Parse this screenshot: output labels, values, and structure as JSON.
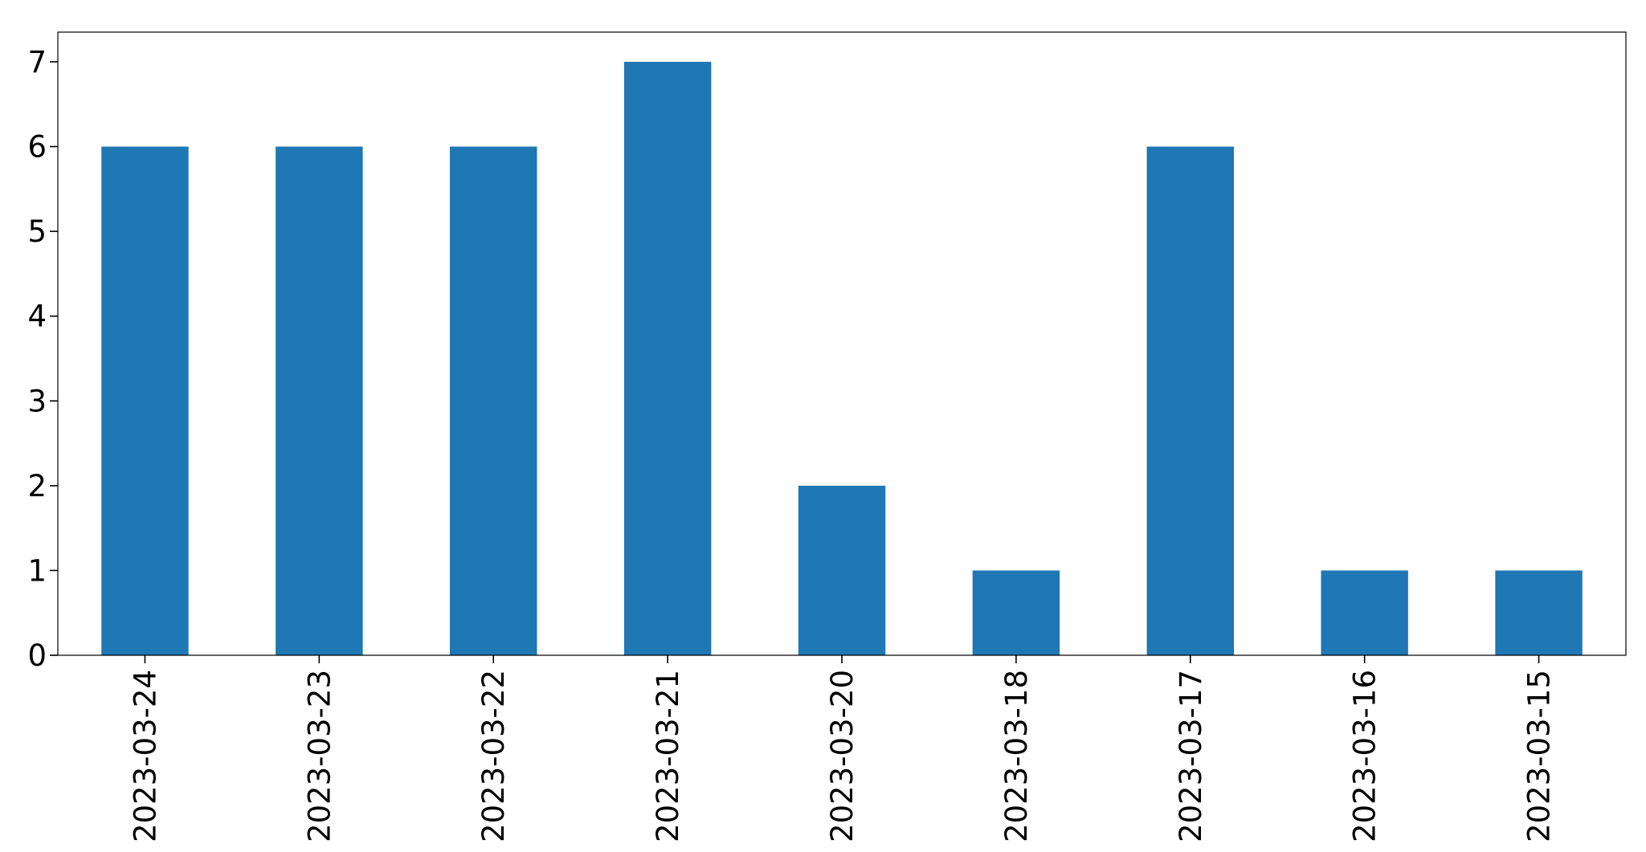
{
  "chart_data": {
    "type": "bar",
    "title": "",
    "xlabel": "",
    "ylabel": "",
    "categories": [
      "2023-03-24",
      "2023-03-23",
      "2023-03-22",
      "2023-03-21",
      "2023-03-20",
      "2023-03-18",
      "2023-03-17",
      "2023-03-16",
      "2023-03-15"
    ],
    "values": [
      6,
      6,
      6,
      7,
      2,
      1,
      6,
      1,
      1
    ],
    "ylim": [
      0,
      7.35
    ],
    "yticks": [
      0,
      1,
      2,
      3,
      4,
      5,
      6,
      7
    ],
    "bar_color": "#1f77b4",
    "grid": false,
    "legend": "none"
  }
}
